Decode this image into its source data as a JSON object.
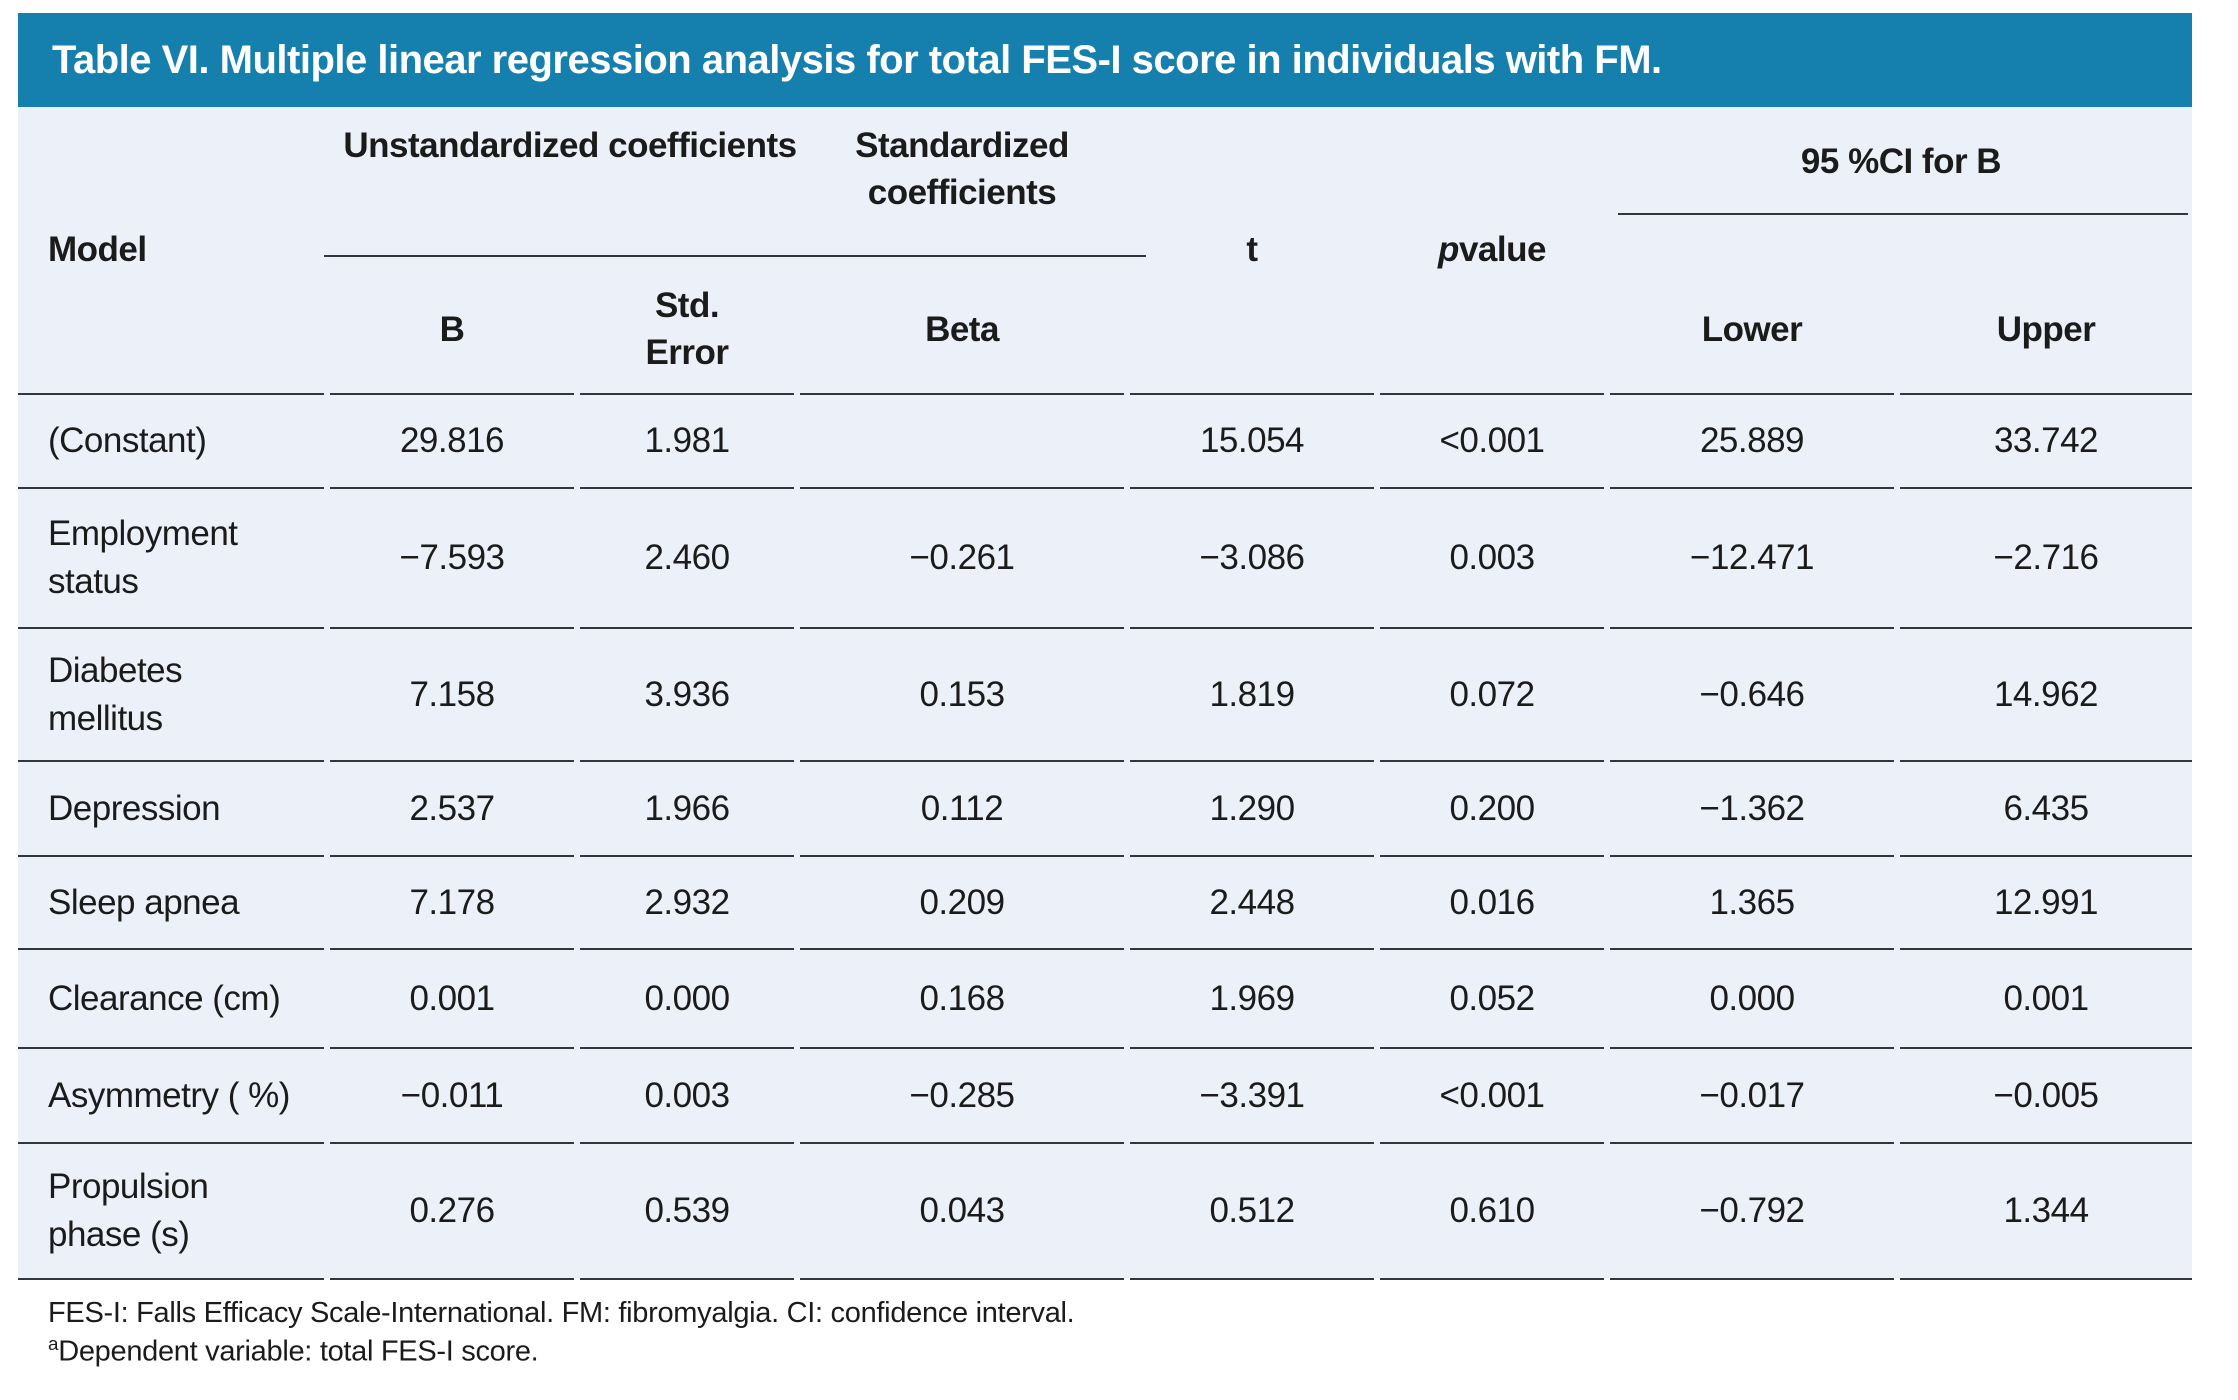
{
  "title": "Table VI. Multiple linear regression analysis for total FES-I score in individuals with FM.",
  "colors": {
    "header_bar": "#157FAD",
    "table_bg": "#ECF0F8",
    "rule": "#33373B"
  },
  "table": {
    "header": {
      "model": "Model",
      "group_unstandardized": "Unstandardized coefficients",
      "group_standardized": "Standardized coefficients",
      "group_ci": "95 %CI for B",
      "col_b": "B",
      "col_std_error": "Std.\nError",
      "col_beta": "Beta",
      "col_t": "t",
      "col_p_italic": "p",
      "col_p_rest": " value",
      "col_lower": "Lower",
      "col_upper": "Upper"
    },
    "rows": [
      {
        "model": "(Constant)",
        "b": "29.816",
        "std_error": "1.981",
        "beta": "",
        "t": "15.054",
        "p": "<0.001",
        "lower": "25.889",
        "upper": "33.742"
      },
      {
        "model": "Employment\nstatus",
        "b": "−7.593",
        "std_error": "2.460",
        "beta": "−0.261",
        "t": "−3.086",
        "p": "0.003",
        "lower": "−12.471",
        "upper": "−2.716"
      },
      {
        "model": "Diabetes\nmellitus",
        "b": "7.158",
        "std_error": "3.936",
        "beta": "0.153",
        "t": "1.819",
        "p": "0.072",
        "lower": "−0.646",
        "upper": "14.962"
      },
      {
        "model": "Depression",
        "b": "2.537",
        "std_error": "1.966",
        "beta": "0.112",
        "t": "1.290",
        "p": "0.200",
        "lower": "−1.362",
        "upper": "6.435"
      },
      {
        "model": "Sleep apnea",
        "b": "7.178",
        "std_error": "2.932",
        "beta": "0.209",
        "t": "2.448",
        "p": "0.016",
        "lower": "1.365",
        "upper": "12.991"
      },
      {
        "model": "Clearance (cm)",
        "b": "0.001",
        "std_error": "0.000",
        "beta": "0.168",
        "t": "1.969",
        "p": "0.052",
        "lower": "0.000",
        "upper": "0.001"
      },
      {
        "model": "Asymmetry ( %)",
        "b": "−0.011",
        "std_error": "0.003",
        "beta": "−0.285",
        "t": "−3.391",
        "p": "<0.001",
        "lower": "−0.017",
        "upper": "−0.005"
      },
      {
        "model": "Propulsion\nphase (s)",
        "b": "0.276",
        "std_error": "0.539",
        "beta": "0.043",
        "t": "0.512",
        "p": "0.610",
        "lower": "−0.792",
        "upper": "1.344"
      }
    ]
  },
  "footnotes": {
    "abbreviations": "FES-I: Falls Efficacy Scale-International. FM: fibromyalgia. CI: confidence interval.",
    "dependent_sup": "a",
    "dependent_text": "Dependent variable: total FES-I score."
  }
}
